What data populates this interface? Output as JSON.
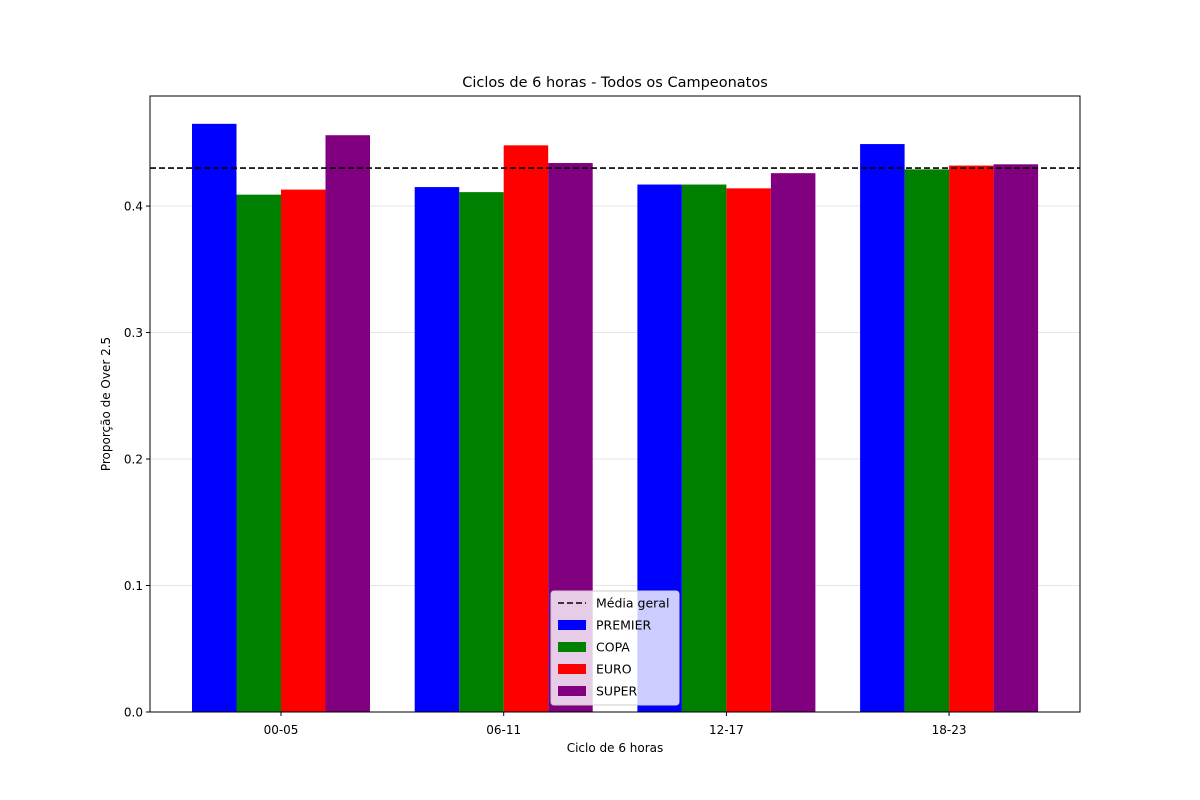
{
  "chart_data": {
    "type": "bar",
    "title": "Ciclos de 6 horas - Todos os Campeonatos",
    "xlabel": "Ciclo de 6 horas",
    "ylabel": "Proporção de Over 2.5",
    "categories": [
      "00-05",
      "06-11",
      "12-17",
      "18-23"
    ],
    "series": [
      {
        "name": "PREMIER",
        "color": "#0000ff",
        "values": [
          0.465,
          0.415,
          0.417,
          0.449
        ]
      },
      {
        "name": "COPA",
        "color": "#008000",
        "values": [
          0.409,
          0.411,
          0.417,
          0.429
        ]
      },
      {
        "name": "EURO",
        "color": "#ff0000",
        "values": [
          0.413,
          0.448,
          0.414,
          0.432
        ]
      },
      {
        "name": "SUPER",
        "color": "#800080",
        "values": [
          0.456,
          0.434,
          0.426,
          0.433
        ]
      }
    ],
    "reference_line": {
      "name": "Média geral",
      "value": 0.43,
      "style": "dashed",
      "color": "#000000"
    },
    "ylim": [
      0,
      0.487
    ],
    "yticks": [
      "0.0",
      "0.1",
      "0.2",
      "0.3",
      "0.4"
    ],
    "grid": "horizontal",
    "legend_position": "lower-center"
  }
}
